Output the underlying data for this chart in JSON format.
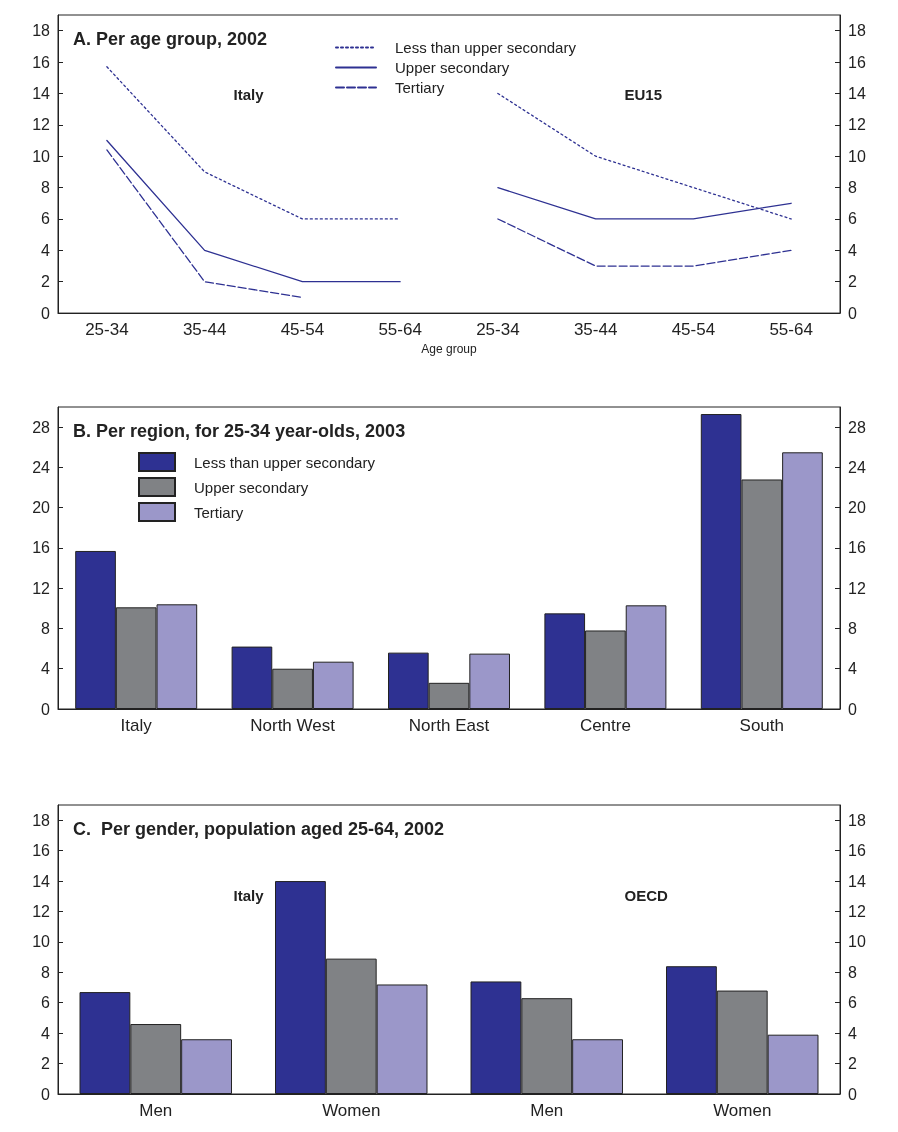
{
  "chart_data": [
    {
      "type": "line",
      "title": "A. Per age group, 2002",
      "xlabel": "Age group",
      "annotations": [
        "Italy",
        "EU15"
      ],
      "categories": [
        "25-34",
        "35-44",
        "45-54",
        "55-64",
        "25-34",
        "35-44",
        "45-54",
        "55-64"
      ],
      "series": [
        {
          "name": "Less than upper secondary",
          "color": "#2e3192",
          "line_style": "dotted",
          "values": [
            15.7,
            9,
            6,
            6,
            null,
            null,
            null,
            null
          ]
        },
        {
          "name": "Upper secondary",
          "color": "#2e3192",
          "line_style": "solid",
          "values": [
            11,
            4,
            2,
            2,
            null,
            null,
            null,
            null
          ]
        },
        {
          "name": "Tertiary",
          "color": "#2e3192",
          "line_style": "dashed",
          "values": [
            10.4,
            2,
            1,
            null,
            null,
            null,
            null,
            null
          ]
        },
        {
          "color": "#2e3192",
          "line_style": "dotted",
          "values": [
            null,
            null,
            null,
            null,
            14,
            10,
            8,
            6
          ]
        },
        {
          "color": "#2e3192",
          "line_style": "solid",
          "values": [
            null,
            null,
            null,
            null,
            8,
            6,
            6,
            7
          ]
        },
        {
          "color": "#2e3192",
          "line_style": "dashed",
          "values": [
            null,
            null,
            null,
            null,
            6,
            3,
            3,
            4
          ]
        }
      ],
      "ylim": [
        0,
        19
      ],
      "yticks": [
        0,
        2,
        4,
        6,
        8,
        10,
        12,
        14,
        16,
        18
      ],
      "y2lim": [
        0,
        19
      ],
      "y2ticks": [
        0,
        2,
        4,
        6,
        8,
        10,
        12,
        14,
        16,
        18
      ],
      "marker": "none",
      "grid": false,
      "legend": "top"
    },
    {
      "type": "bar",
      "title": "B. Per region, for 25-34 year-olds, 2003",
      "categories": [
        "Italy",
        "North West",
        "North East",
        "Centre",
        "South"
      ],
      "series": [
        {
          "name": "Less than upper secondary",
          "color": "#2e3192",
          "values": [
            15.7,
            6.2,
            5.6,
            9.5,
            29.3
          ]
        },
        {
          "name": "Upper secondary",
          "color": "#808285",
          "values": [
            10.1,
            4.0,
            2.6,
            7.8,
            22.8
          ]
        },
        {
          "name": "Tertiary",
          "color": "#9b97c9",
          "values": [
            10.4,
            4.7,
            5.5,
            10.3,
            25.5
          ]
        }
      ],
      "ylim": [
        0,
        30
      ],
      "yticks": [
        0,
        4,
        8,
        12,
        16,
        20,
        24,
        28
      ],
      "y2lim": [
        0,
        30
      ],
      "y2ticks": [
        0,
        4,
        8,
        12,
        16,
        20,
        24,
        28
      ],
      "grid": false,
      "legend": "top left"
    },
    {
      "type": "bar",
      "title": "C.  Per gender, population aged 25-64, 2002",
      "annotations": [
        "Italy",
        "OECD"
      ],
      "categories": [
        "Men",
        "Women",
        "Men",
        "Women"
      ],
      "series": [
        {
          "color": "#2e3192",
          "values": [
            6.7,
            14.0,
            7.4,
            8.4
          ]
        },
        {
          "color": "#808285",
          "values": [
            4.6,
            8.9,
            6.3,
            6.8
          ]
        },
        {
          "color": "#9b97c9",
          "values": [
            3.6,
            7.2,
            3.6,
            3.9
          ]
        }
      ],
      "ylim": [
        0,
        19
      ],
      "yticks": [
        0,
        2,
        4,
        6,
        8,
        10,
        12,
        14,
        16,
        18
      ],
      "y2lim": [
        0,
        19
      ],
      "y2ticks": [
        0,
        2,
        4,
        6,
        8,
        10,
        12,
        14,
        16,
        18
      ],
      "grid": false
    }
  ]
}
